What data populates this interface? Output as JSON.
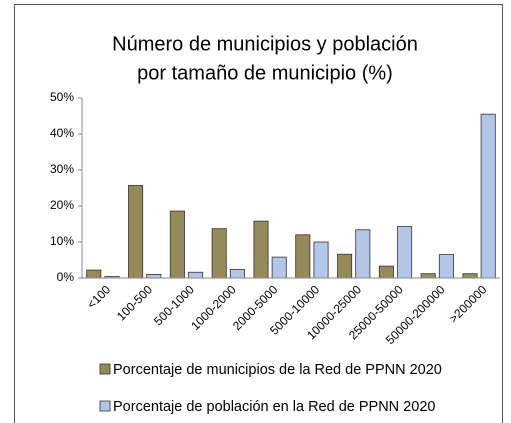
{
  "chart_data": {
    "type": "bar",
    "title": [
      "Número de municipios y población",
      "por tamaño de municipio (%)"
    ],
    "categories": [
      "<100",
      "100-500",
      "500-1000",
      "1000-2000",
      "2000-5000",
      "5000-10000",
      "10000-25000",
      "25000-50000",
      "50000-200000",
      ">200000"
    ],
    "series": [
      {
        "name": "Porcentaje de municipios de la Red de PPNN 2020",
        "color": "#958b5a",
        "values": [
          2.2,
          25.7,
          18.6,
          13.7,
          15.8,
          12.0,
          6.6,
          3.3,
          1.2,
          1.2
        ]
      },
      {
        "name": "Porcentaje de población en la Red de PPNN 2020",
        "color": "#b3c6e7",
        "values": [
          0.4,
          1.0,
          1.6,
          2.4,
          5.8,
          10.0,
          13.4,
          14.3,
          6.5,
          45.5
        ]
      }
    ],
    "ylim": [
      0,
      50
    ],
    "yticks": [
      {
        "value": 0,
        "label": "0%"
      },
      {
        "value": 10,
        "label": "10%"
      },
      {
        "value": 20,
        "label": "20%"
      },
      {
        "value": 30,
        "label": "30%"
      },
      {
        "value": 40,
        "label": "40%"
      },
      {
        "value": 50,
        "label": "50%"
      }
    ],
    "grid": false,
    "legend": "bottom"
  }
}
